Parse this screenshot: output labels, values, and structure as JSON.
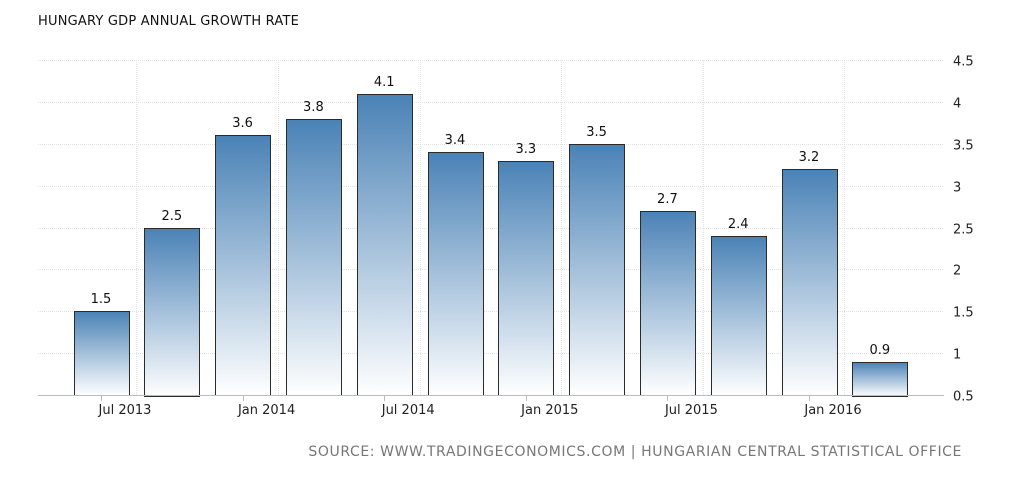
{
  "chart_data": {
    "type": "bar",
    "title": "HUNGARY GDP ANNUAL GROWTH RATE",
    "categories": [
      "2013 Q3",
      "2013 Q4",
      "2014 Q1",
      "2014 Q2",
      "2014 Q3",
      "2014 Q4",
      "2015 Q1",
      "2015 Q2",
      "2015 Q3",
      "2015 Q4",
      "2016 Q1",
      "2016 Q2"
    ],
    "values": [
      1.5,
      2.5,
      3.6,
      3.8,
      4.1,
      3.4,
      3.3,
      3.5,
      2.7,
      2.4,
      3.2,
      0.9
    ],
    "x_tick_labels": [
      {
        "label": "Jul 2013",
        "index": 0
      },
      {
        "label": "Jan 2014",
        "index": 2
      },
      {
        "label": "Jul 2014",
        "index": 4
      },
      {
        "label": "Jan 2015",
        "index": 6
      },
      {
        "label": "Jul 2015",
        "index": 8
      },
      {
        "label": "Jan 2016",
        "index": 10
      }
    ],
    "y_ticks": [
      "0.5",
      "1",
      "1.5",
      "2",
      "2.5",
      "3",
      "3.5",
      "4",
      "4.5"
    ],
    "ylim": [
      0.5,
      4.5
    ],
    "y_axis_side": "right",
    "grid": true,
    "bar_color_top": "#4a82b6",
    "bar_color_bottom": "#ffffff",
    "source": "SOURCE: WWW.TRADINGECONOMICS.COM | HUNGARIAN CENTRAL STATISTICAL OFFICE"
  }
}
